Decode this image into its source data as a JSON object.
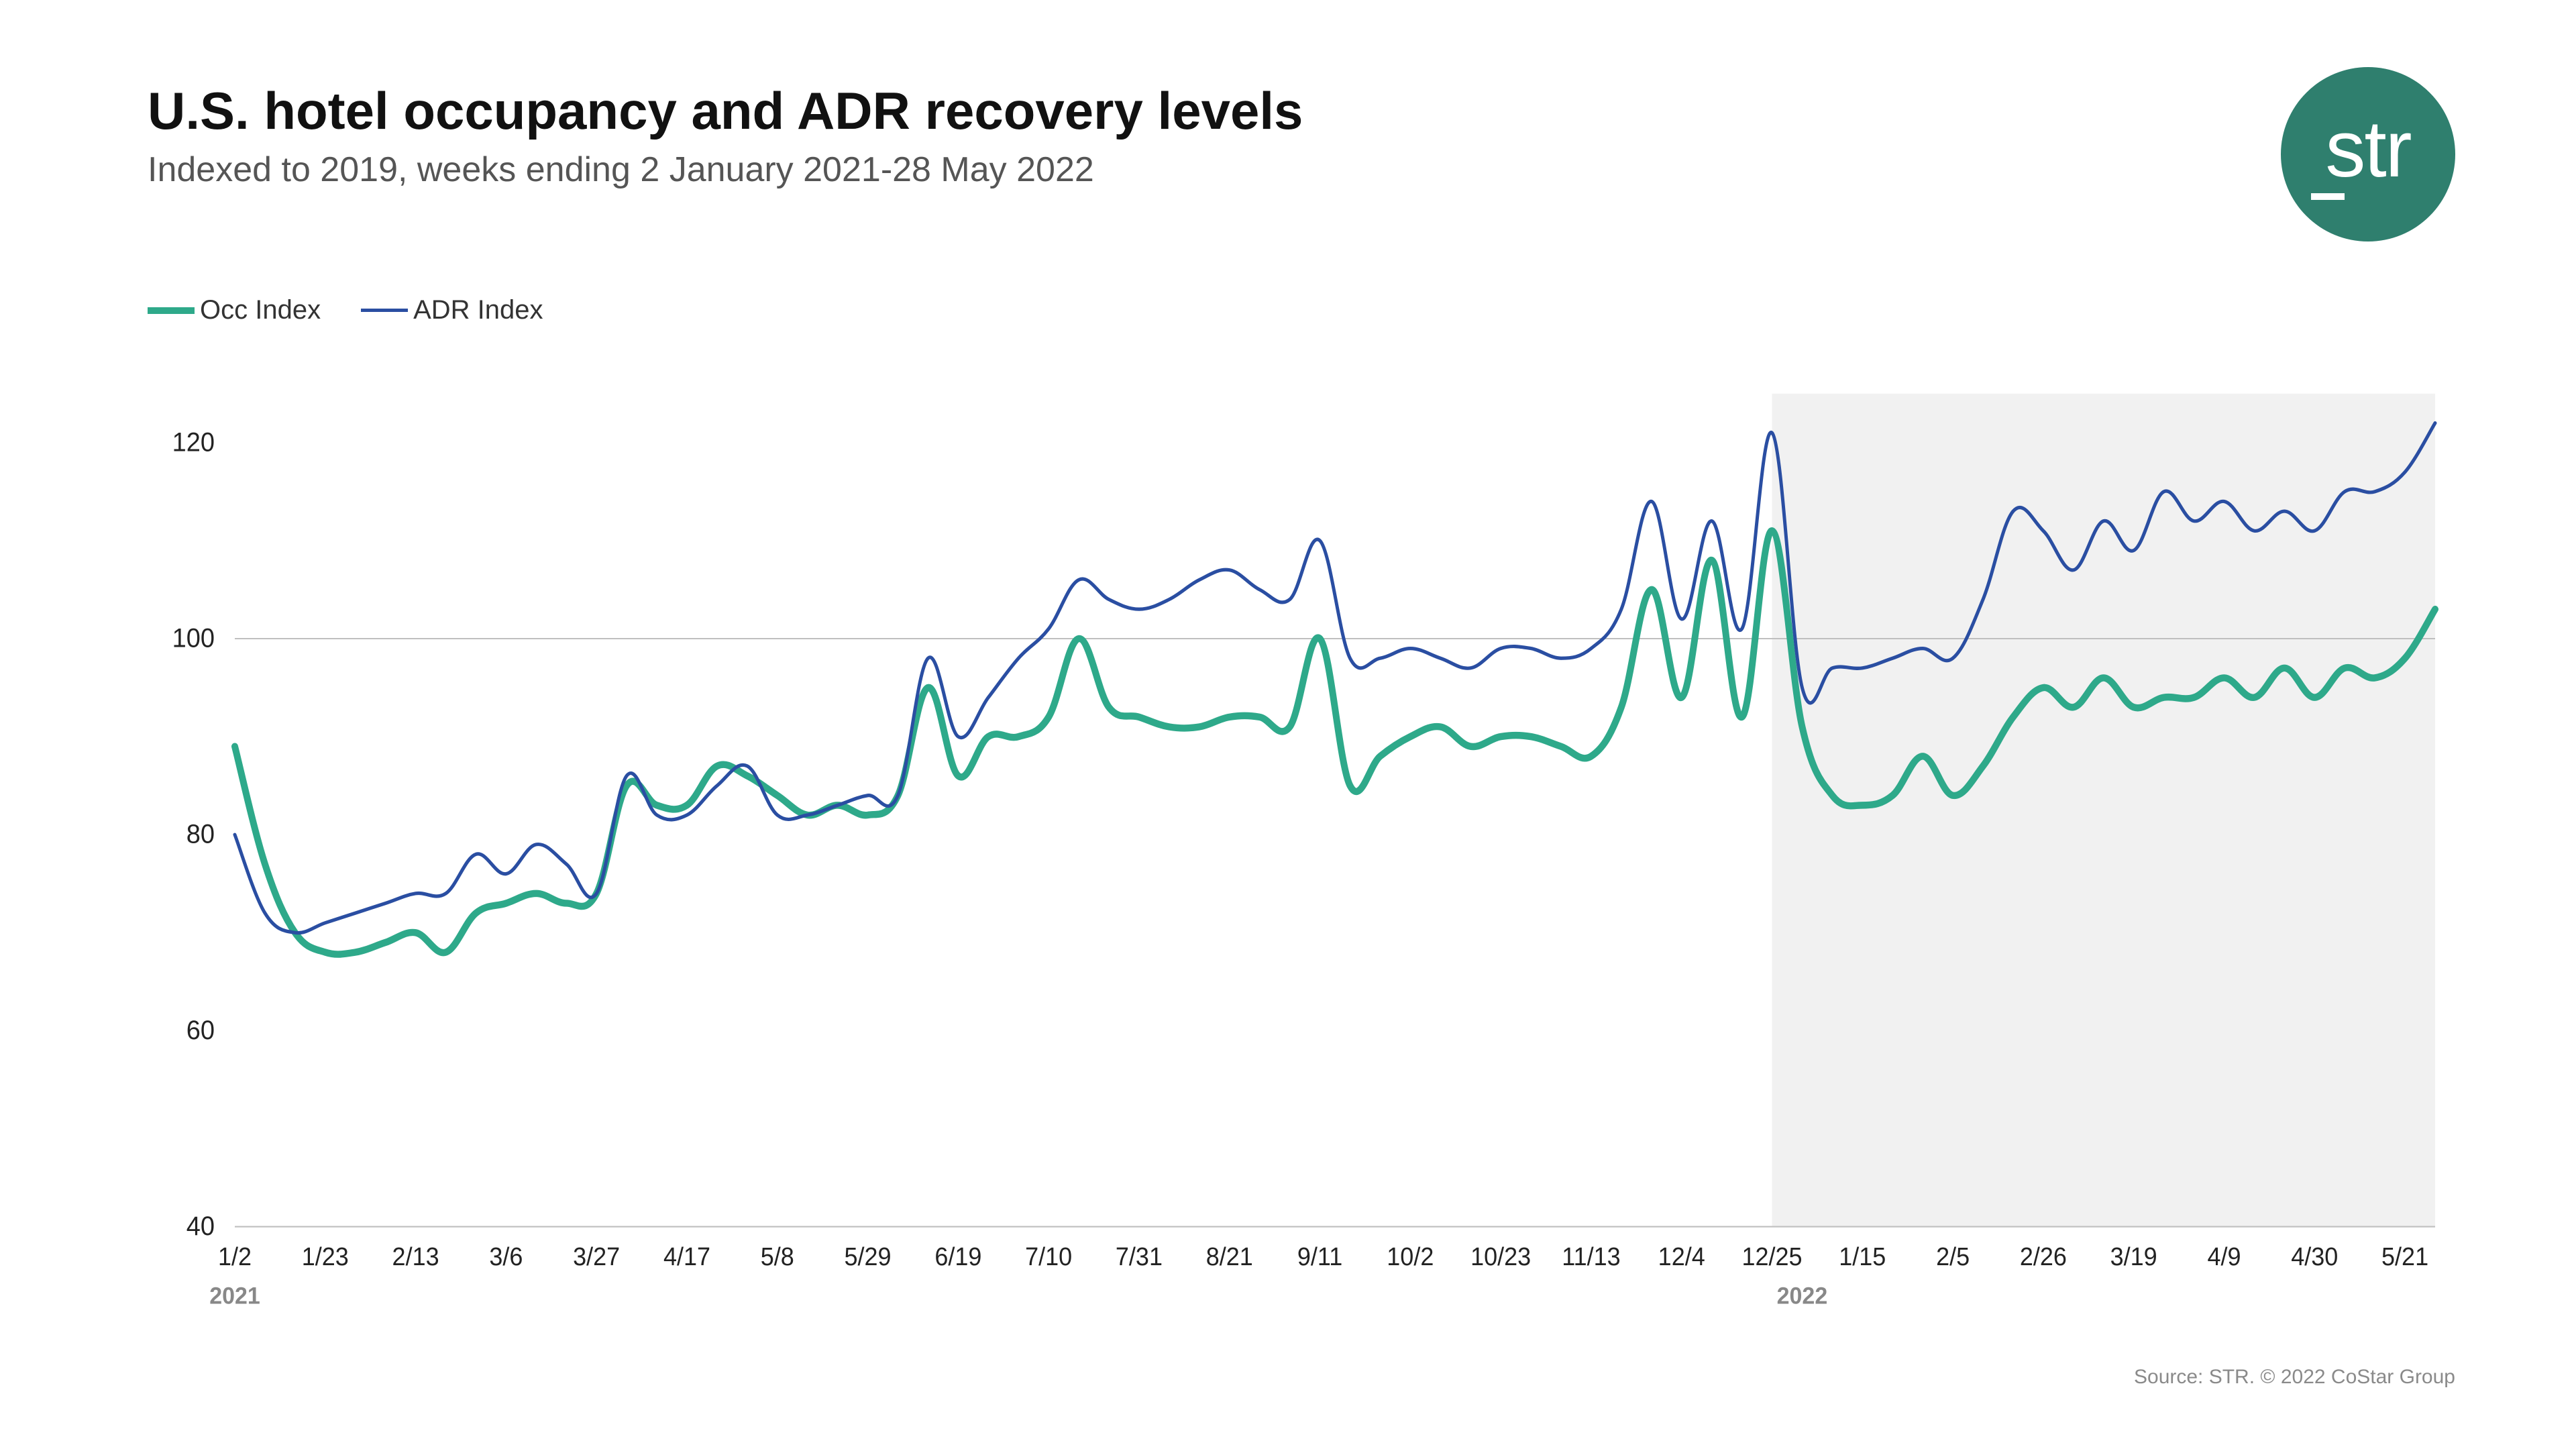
{
  "title": "U.S. hotel occupancy and ADR recovery levels",
  "subtitle": "Indexed to 2019, weeks ending 2 January 2021-28 May 2022",
  "logo": {
    "text": "str",
    "bg_color": "#2f7f6e"
  },
  "legend": [
    {
      "label": "Occ Index",
      "color": "#2ea98a",
      "width": 10
    },
    {
      "label": "ADR Index",
      "color": "#2a4ea2",
      "width": 5
    }
  ],
  "footer": "Source: STR. © 2022 CoStar Group",
  "chart": {
    "type": "line",
    "background_color": "#ffffff",
    "shade_band_color": "#f1f1f1",
    "grid_color": "#bfbfbf",
    "ylim": [
      40,
      125
    ],
    "ytick_step": 20,
    "yticks": [
      40,
      60,
      80,
      100,
      120
    ],
    "tick_fontsize": 38,
    "x_labels": [
      "1/2",
      "1/23",
      "2/13",
      "3/6",
      "3/27",
      "4/17",
      "5/8",
      "5/29",
      "6/19",
      "7/10",
      "7/31",
      "8/21",
      "9/11",
      "10/2",
      "10/23",
      "11/13",
      "12/4",
      "12/25",
      "1/15",
      "2/5",
      "2/26",
      "3/19",
      "4/9",
      "4/30",
      "5/21"
    ],
    "x_label_every": 3,
    "year_markers": [
      {
        "index": 0,
        "label": "2021"
      },
      {
        "index": 52,
        "label": "2022"
      }
    ],
    "shade_start_index": 51,
    "shade_end_index": 73,
    "n_points": 74,
    "series": [
      {
        "name": "Occ Index",
        "color": "#2ea98a",
        "stroke_width": 10,
        "values": [
          89,
          77,
          70,
          68,
          68,
          69,
          70,
          68,
          72,
          73,
          74,
          73,
          74,
          85,
          83,
          83,
          87,
          86,
          84,
          82,
          83,
          82,
          84,
          95,
          86,
          90,
          90,
          92,
          100,
          93,
          92,
          91,
          91,
          92,
          92,
          91,
          100,
          85,
          88,
          90,
          91,
          89,
          90,
          90,
          89,
          88,
          93,
          105,
          94,
          108,
          92,
          111,
          91,
          84,
          83,
          84,
          88,
          84,
          87,
          92,
          95,
          93,
          96,
          93,
          94,
          94,
          96,
          94,
          97,
          94,
          97,
          96,
          98,
          103
        ]
      },
      {
        "name": "ADR Index",
        "color": "#2a4ea2",
        "stroke_width": 5,
        "values": [
          80,
          72,
          70,
          71,
          72,
          73,
          74,
          74,
          78,
          76,
          79,
          77,
          74,
          86,
          82,
          82,
          85,
          87,
          82,
          82,
          83,
          84,
          84,
          98,
          90,
          94,
          98,
          101,
          106,
          104,
          103,
          104,
          106,
          107,
          105,
          104,
          110,
          98,
          98,
          99,
          98,
          97,
          99,
          99,
          98,
          99,
          103,
          114,
          102,
          112,
          101,
          121,
          95,
          97,
          97,
          98,
          99,
          98,
          104,
          113,
          111,
          107,
          112,
          109,
          115,
          112,
          114,
          111,
          113,
          111,
          115,
          115,
          117,
          122
        ]
      }
    ]
  }
}
